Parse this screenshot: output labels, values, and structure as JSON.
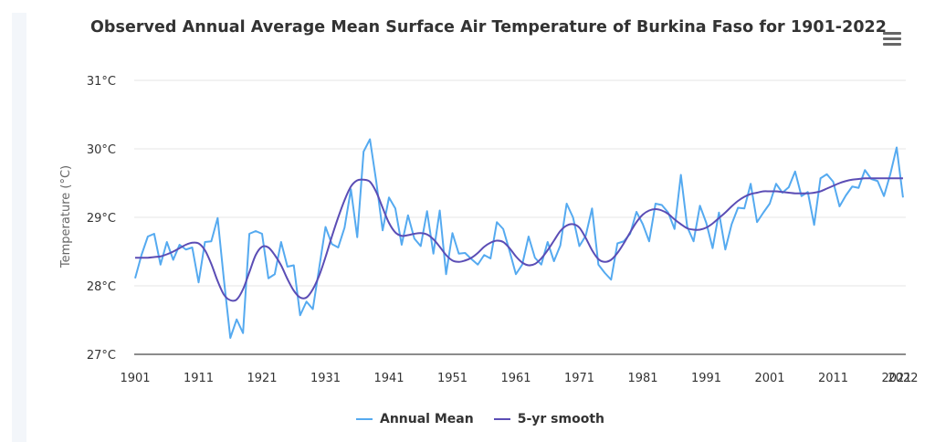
{
  "page": {
    "menu_icon": "hamburger-menu-icon"
  },
  "chart_data": {
    "type": "line",
    "title": "Observed Annual Average Mean Surface Air Temperature of Burkina Faso for 1901-2022",
    "xlabel": "",
    "ylabel": "Temperature (°C)",
    "ylim": [
      27,
      31
    ],
    "xlim": [
      1901,
      2022
    ],
    "y_ticks": [
      {
        "value": 27,
        "label": "27°C"
      },
      {
        "value": 28,
        "label": "28°C"
      },
      {
        "value": 29,
        "label": "29°C"
      },
      {
        "value": 30,
        "label": "30°C"
      },
      {
        "value": 31,
        "label": "31°C"
      }
    ],
    "x_ticks": [
      {
        "value": 1901,
        "label": "1901"
      },
      {
        "value": 1911,
        "label": "1911"
      },
      {
        "value": 1921,
        "label": "1921"
      },
      {
        "value": 1931,
        "label": "1931"
      },
      {
        "value": 1941,
        "label": "1941"
      },
      {
        "value": 1951,
        "label": "1951"
      },
      {
        "value": 1961,
        "label": "1961"
      },
      {
        "value": 1971,
        "label": "1971"
      },
      {
        "value": 1981,
        "label": "1981"
      },
      {
        "value": 1991,
        "label": "1991"
      },
      {
        "value": 2001,
        "label": "2001"
      },
      {
        "value": 2011,
        "label": "2011"
      },
      {
        "value": 2021,
        "label": "2021"
      },
      {
        "value": 2022,
        "label": "2022"
      }
    ],
    "grid": true,
    "legend_position": "bottom-center",
    "x_start": 1901,
    "series": [
      {
        "name": "Annual Mean",
        "color": "#55aaf0",
        "values": [
          28.11,
          28.45,
          28.72,
          28.76,
          28.31,
          28.64,
          28.38,
          28.6,
          28.53,
          28.56,
          28.05,
          28.64,
          28.65,
          28.99,
          28.08,
          27.24,
          27.51,
          27.31,
          28.76,
          28.8,
          28.76,
          28.11,
          28.17,
          28.64,
          28.28,
          28.3,
          27.57,
          27.77,
          27.66,
          28.26,
          28.86,
          28.61,
          28.56,
          28.85,
          29.41,
          28.71,
          29.96,
          30.14,
          29.52,
          28.81,
          29.29,
          29.13,
          28.6,
          29.03,
          28.69,
          28.58,
          29.09,
          28.47,
          29.1,
          28.17,
          28.77,
          28.47,
          28.48,
          28.39,
          28.31,
          28.45,
          28.4,
          28.93,
          28.83,
          28.51,
          28.17,
          28.31,
          28.72,
          28.41,
          28.31,
          28.64,
          28.36,
          28.59,
          29.2,
          29.0,
          28.58,
          28.73,
          29.13,
          28.31,
          28.19,
          28.09,
          28.62,
          28.65,
          28.76,
          29.08,
          28.9,
          28.65,
          29.2,
          29.18,
          29.07,
          28.83,
          29.62,
          28.86,
          28.65,
          29.17,
          28.92,
          28.55,
          29.07,
          28.53,
          28.9,
          29.14,
          29.13,
          29.49,
          28.93,
          29.07,
          29.2,
          29.49,
          29.36,
          29.44,
          29.67,
          29.31,
          29.37,
          28.89,
          29.57,
          29.63,
          29.52,
          29.16,
          29.32,
          29.45,
          29.43,
          29.69,
          29.56,
          29.53,
          29.31,
          29.63,
          30.02,
          29.29
        ]
      },
      {
        "name": "5-yr smooth",
        "color": "#5b4db5",
        "values": [
          28.41,
          28.41,
          28.41,
          28.42,
          28.43,
          28.46,
          28.5,
          28.55,
          28.6,
          28.63,
          28.62,
          28.52,
          28.32,
          28.07,
          27.87,
          27.79,
          27.8,
          27.95,
          28.2,
          28.45,
          28.57,
          28.56,
          28.45,
          28.3,
          28.1,
          27.93,
          27.83,
          27.83,
          27.95,
          28.15,
          28.42,
          28.72,
          29.0,
          29.25,
          29.45,
          29.54,
          29.55,
          29.52,
          29.37,
          29.14,
          28.92,
          28.78,
          28.73,
          28.74,
          28.76,
          28.77,
          28.75,
          28.68,
          28.57,
          28.45,
          28.37,
          28.35,
          28.37,
          28.41,
          28.48,
          28.57,
          28.63,
          28.66,
          28.64,
          28.55,
          28.43,
          28.34,
          28.3,
          28.32,
          28.4,
          28.52,
          28.66,
          28.8,
          28.88,
          28.9,
          28.85,
          28.7,
          28.52,
          28.39,
          28.35,
          28.38,
          28.48,
          28.62,
          28.78,
          28.93,
          29.04,
          29.1,
          29.12,
          29.1,
          29.05,
          28.97,
          28.9,
          28.84,
          28.82,
          28.82,
          28.85,
          28.91,
          28.99,
          29.07,
          29.16,
          29.24,
          29.3,
          29.34,
          29.36,
          29.38,
          29.38,
          29.38,
          29.37,
          29.36,
          29.35,
          29.35,
          29.35,
          29.36,
          29.38,
          29.42,
          29.46,
          29.5,
          29.53,
          29.55,
          29.56,
          29.57,
          29.57,
          29.57,
          29.57,
          29.57,
          29.57,
          29.57
        ]
      }
    ]
  },
  "colors": {
    "grid": "#e6e6e6",
    "axis": "#666666",
    "sidebar": "#f3f6fa"
  }
}
